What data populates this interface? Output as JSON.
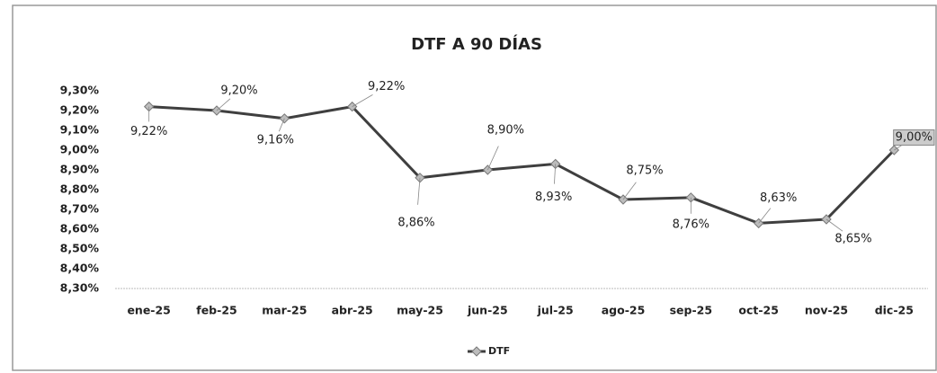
{
  "chart_data": {
    "type": "line",
    "title": "DTF A 90 DÍAS",
    "categories": [
      "ene-25",
      "feb-25",
      "mar-25",
      "abr-25",
      "may-25",
      "jun-25",
      "jul-25",
      "ago-25",
      "sep-25",
      "oct-25",
      "nov-25",
      "dic-25"
    ],
    "series": [
      {
        "name": "DTF",
        "color": "#3f3f3f",
        "values": [
          9.22,
          9.2,
          9.16,
          9.22,
          8.86,
          8.9,
          8.93,
          8.75,
          8.76,
          8.63,
          8.65,
          9.0
        ],
        "value_labels": [
          "9,22%",
          "9,20%",
          "9,16%",
          "9,22%",
          "8,86%",
          "8,90%",
          "8,93%",
          "8,75%",
          "8,76%",
          "8,63%",
          "8,65%",
          "9,00%"
        ]
      }
    ],
    "ylim": [
      8.3,
      9.3
    ],
    "yticks": [
      {
        "value": 8.3,
        "label": "8,30%"
      },
      {
        "value": 8.4,
        "label": "8,40%"
      },
      {
        "value": 8.5,
        "label": "8,50%"
      },
      {
        "value": 8.6,
        "label": "8,60%"
      },
      {
        "value": 8.7,
        "label": "8,70%"
      },
      {
        "value": 8.8,
        "label": "8,80%"
      },
      {
        "value": 8.9,
        "label": "8,90%"
      },
      {
        "value": 9.0,
        "label": "9,00%"
      },
      {
        "value": 9.1,
        "label": "9,10%"
      },
      {
        "value": 9.2,
        "label": "9,20%"
      },
      {
        "value": 9.3,
        "label": "9,30%"
      }
    ],
    "legend": "bottom"
  }
}
